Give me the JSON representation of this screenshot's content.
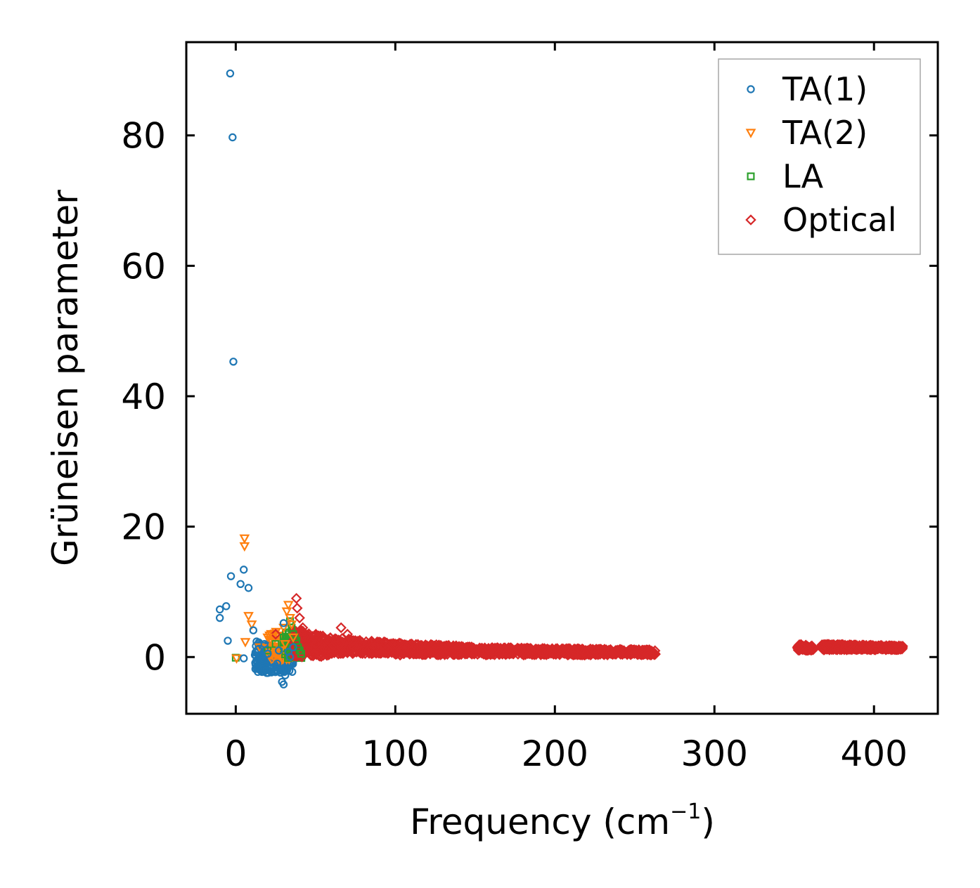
{
  "chart_data": {
    "type": "scatter",
    "title": "",
    "xlabel": "Frequency (cm",
    "xlabel_superscript": "−1",
    "xlabel_suffix": ")",
    "ylabel": "Grüneisen parameter",
    "xlim": [
      -31,
      440
    ],
    "ylim": [
      -8.7,
      94.3
    ],
    "x_ticks": [
      0,
      100,
      200,
      300,
      400
    ],
    "y_ticks": [
      0,
      20,
      40,
      60,
      80
    ],
    "legend_position": "top-right",
    "series": [
      {
        "name": "TA(1)",
        "marker": "circle",
        "color": "#1f77b4",
        "x": [
          -3.5,
          -2.0,
          -1.5,
          -10.0,
          -10.0,
          -6.0,
          -5.0,
          -3.0,
          5.0,
          3.0,
          8.0,
          5.0,
          11.0,
          14.0,
          17.0,
          30.0,
          12.0,
          18.0,
          24.0,
          27.0,
          28.0,
          31.0,
          33.0,
          20.0,
          26.0,
          36.0,
          34.0,
          29.0,
          30.0
        ],
        "y": [
          89.5,
          79.7,
          45.3,
          7.3,
          6.0,
          7.8,
          2.5,
          12.4,
          13.4,
          11.2,
          10.6,
          -0.2,
          4.1,
          1.2,
          -0.5,
          5.2,
          0.3,
          2.0,
          -1.5,
          1.0,
          -2.0,
          -2.8,
          0.8,
          0.5,
          -1.0,
          1.5,
          0.0,
          -3.8,
          -4.2
        ]
      },
      {
        "name": "TA(2)",
        "marker": "triangle-down",
        "color": "#ff7f0e",
        "x": [
          5.5,
          5.5,
          8.0,
          10.0,
          0.5,
          6.0,
          15.0,
          20.0,
          25.0,
          30.0,
          32.0,
          33.0,
          34.0,
          35.0,
          36.0,
          31.0,
          28.0
        ],
        "y": [
          18.2,
          17.0,
          6.3,
          5.0,
          -0.2,
          2.3,
          1.5,
          3.0,
          0.5,
          4.5,
          7.0,
          8.0,
          6.0,
          5.0,
          3.0,
          2.0,
          1.0
        ]
      },
      {
        "name": "LA",
        "marker": "square",
        "color": "#2ca02c",
        "x": [
          0.0,
          20.0,
          25.0,
          30.0,
          34.0,
          35.0,
          36.0,
          37.0,
          38.0,
          39.0,
          40.0,
          41.0
        ],
        "y": [
          -0.1,
          1.0,
          2.0,
          3.0,
          5.5,
          4.5,
          3.5,
          3.0,
          2.5,
          1.5,
          1.0,
          0.5
        ]
      },
      {
        "name": "Optical",
        "marker": "diamond",
        "color": "#d62728",
        "x": [
          25.0,
          38.0,
          38.5,
          40.0,
          42.0,
          45.0,
          50.0,
          55.0,
          60.0,
          66.0,
          70.0,
          73.0,
          78.0,
          85.0,
          95.0,
          100.0,
          110.0,
          116.0,
          125.0,
          135.0,
          143.0,
          155.0,
          170.0,
          182.0,
          195.0,
          210.0,
          225.0,
          240.0,
          250.0,
          258.0,
          262.0,
          352.0,
          355.0,
          358.0,
          370.0,
          380.0,
          390.0,
          398.0,
          405.0,
          412.0,
          416.0
        ],
        "y": [
          3.5,
          9.0,
          7.5,
          6.0,
          4.5,
          3.0,
          2.0,
          1.5,
          1.5,
          4.5,
          3.5,
          2.5,
          2.0,
          1.5,
          1.2,
          2.0,
          1.0,
          1.8,
          1.2,
          0.8,
          1.3,
          0.8,
          0.6,
          0.8,
          1.1,
          0.8,
          0.9,
          0.7,
          0.6,
          0.5,
          0.5,
          1.5,
          1.4,
          1.2,
          1.6,
          1.7,
          1.6,
          1.8,
          1.7,
          1.5,
          1.4
        ]
      }
    ],
    "dense_bands": [
      {
        "series": "TA(1)",
        "x_range": [
          12,
          36
        ],
        "y_range": [
          -2.5,
          2.5
        ],
        "count": 220
      },
      {
        "series": "TA(2)",
        "x_range": [
          20,
          36
        ],
        "y_range": [
          -0.5,
          4.5
        ],
        "count": 60
      },
      {
        "series": "LA",
        "x_range": [
          30,
          42
        ],
        "y_range": [
          -0.3,
          5.0
        ],
        "count": 80
      },
      {
        "series": "Optical",
        "x_range": [
          36,
          60
        ],
        "y_range": [
          0.0,
          4.5
        ],
        "count": 220
      },
      {
        "series": "Optical",
        "x_range": [
          60,
          100
        ],
        "y_range": [
          0.5,
          3.0
        ],
        "count": 260
      },
      {
        "series": "Optical",
        "x_range": [
          100,
          150
        ],
        "y_range": [
          0.3,
          2.2
        ],
        "count": 300
      },
      {
        "series": "Optical",
        "x_range": [
          150,
          263
        ],
        "y_range": [
          0.3,
          1.5
        ],
        "count": 600
      },
      {
        "series": "Optical",
        "x_range": [
          352,
          362
        ],
        "y_range": [
          1.0,
          2.0
        ],
        "count": 80
      },
      {
        "series": "Optical",
        "x_range": [
          367,
          418
        ],
        "y_range": [
          1.1,
          2.0
        ],
        "count": 400
      }
    ]
  }
}
